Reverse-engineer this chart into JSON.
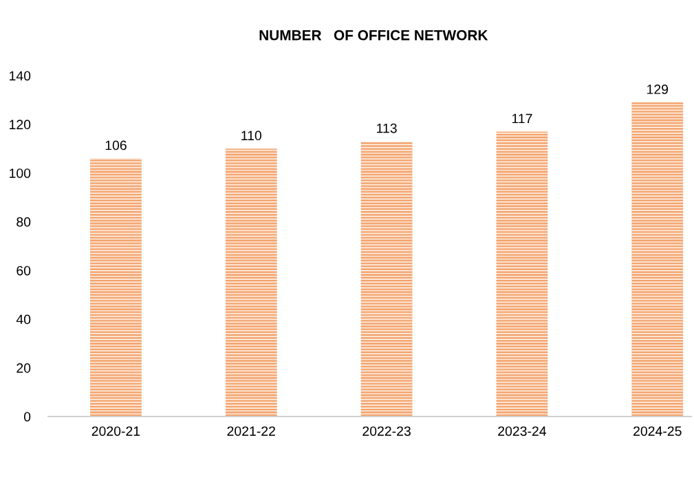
{
  "chart_data": {
    "type": "bar",
    "title": "NUMBER   OF OFFICE NETWORK",
    "categories": [
      "2020-21",
      "2021-22",
      "2022-23",
      "2023-24",
      "2024-25"
    ],
    "values": [
      106,
      110,
      113,
      117,
      129
    ],
    "color": "#f4a36c",
    "ylim": [
      0,
      140
    ],
    "yticks": [
      0,
      20,
      40,
      60,
      80,
      100,
      120,
      140
    ],
    "grid": false,
    "data_labels": true
  }
}
